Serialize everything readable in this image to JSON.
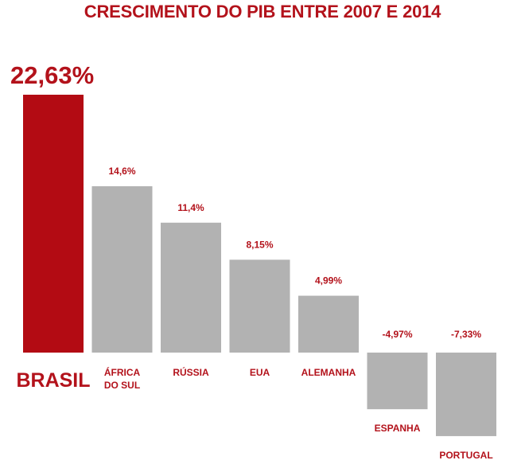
{
  "colors": {
    "highlight": "#b30b13",
    "bar": "#b2b2b2",
    "text": "#b3121b"
  },
  "chart_data": {
    "type": "bar",
    "title": "CRESCIMENTO DO PIB ENTRE 2007 E 2014",
    "categories": [
      "BRASIL",
      "ÁFRICA DO SUL",
      "RÚSSIA",
      "EUA",
      "ALEMANHA",
      "ESPANHA",
      "PORTUGAL"
    ],
    "category_lines": [
      [
        "BRASIL"
      ],
      [
        "ÁFRICA",
        "DO SUL"
      ],
      [
        "RÚSSIA"
      ],
      [
        "EUA"
      ],
      [
        "ALEMANHA"
      ],
      [
        "ESPANHA"
      ],
      [
        "PORTUGAL"
      ]
    ],
    "values": [
      22.63,
      14.6,
      11.4,
      8.15,
      4.99,
      -4.97,
      -7.33
    ],
    "value_labels": [
      "22,63%",
      "14,6%",
      "11,4%",
      "8,15%",
      "4,99%",
      "-4,97%",
      "-7,33%"
    ],
    "highlight_index": 0,
    "xlabel": "",
    "ylabel": "",
    "ylim": [
      -7.33,
      22.63
    ],
    "grid": false,
    "legend": "none"
  }
}
